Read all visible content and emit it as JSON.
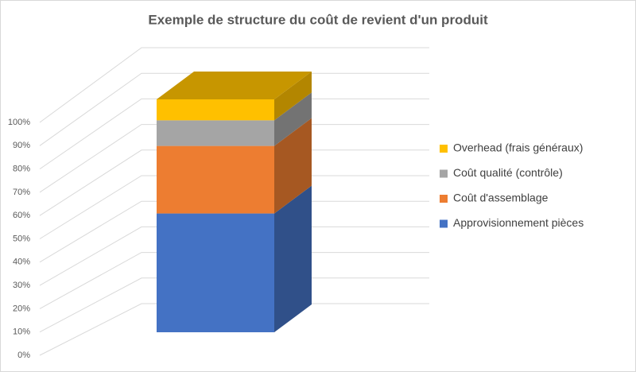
{
  "chart_data": {
    "type": "bar3d_stacked",
    "title": "Exemple de structure du coût de revient d'un produit",
    "categories": [
      null
    ],
    "series": [
      {
        "name": "Approvisionnement pièces",
        "color": "#4472c4",
        "values": [
          51
        ]
      },
      {
        "name": "Coût d'assemblage",
        "color": "#ed7d31",
        "values": [
          29
        ]
      },
      {
        "name": "Coût qualité (contrôle)",
        "color": "#a5a5a5",
        "values": [
          11
        ]
      },
      {
        "name": "Overhead (frais généraux)",
        "color": "#ffc000",
        "values": [
          9
        ]
      }
    ],
    "ylim": [
      0,
      100
    ],
    "yticks": [
      {
        "value": 0,
        "label": "0%"
      },
      {
        "value": 10,
        "label": "10%"
      },
      {
        "value": 20,
        "label": "20%"
      },
      {
        "value": 30,
        "label": "30%"
      },
      {
        "value": 40,
        "label": "40%"
      },
      {
        "value": 50,
        "label": "50%"
      },
      {
        "value": 60,
        "label": "60%"
      },
      {
        "value": 70,
        "label": "70%"
      },
      {
        "value": 80,
        "label": "80%"
      },
      {
        "value": 90,
        "label": "90%"
      },
      {
        "value": 100,
        "label": "100%"
      }
    ],
    "grid": true,
    "legend": "right"
  }
}
